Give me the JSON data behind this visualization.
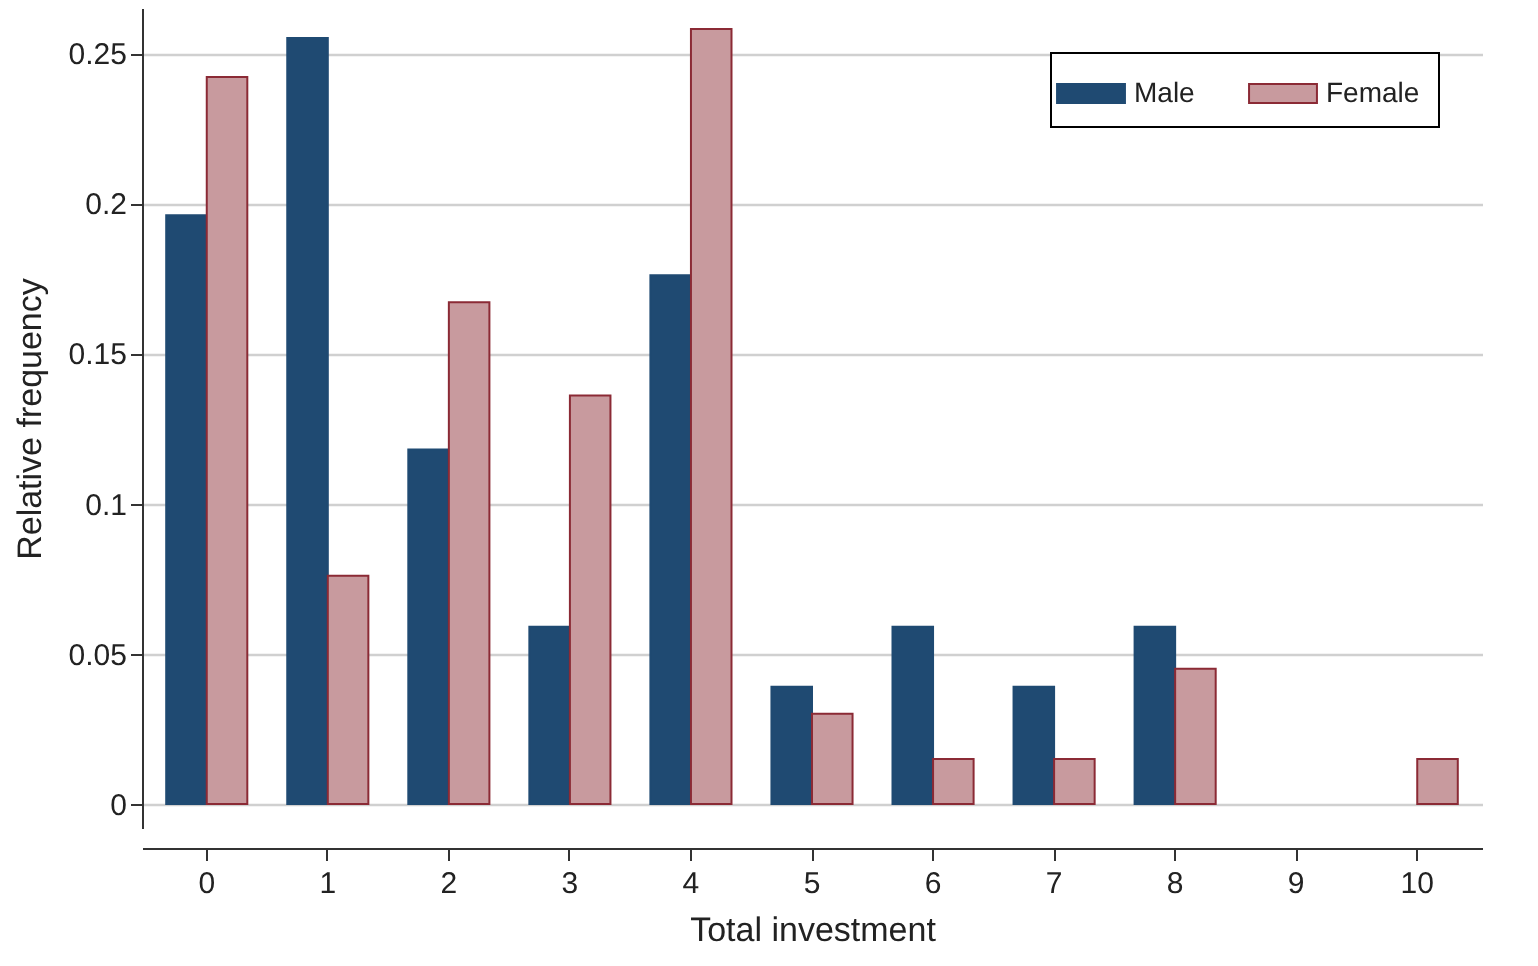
{
  "chart_data": {
    "type": "bar",
    "xlabel": "Total investment",
    "ylabel": "Relative frequency",
    "categories": [
      "0",
      "1",
      "2",
      "3",
      "4",
      "5",
      "6",
      "7",
      "8",
      "9",
      "10"
    ],
    "series": [
      {
        "name": "Male",
        "color": "#1f4a72",
        "values": [
          0.196,
          0.255,
          0.118,
          0.059,
          0.176,
          0.039,
          0.059,
          0.039,
          0.059,
          null,
          null
        ]
      },
      {
        "name": "Female",
        "color": "#c89a9e",
        "values": [
          0.242,
          0.076,
          0.167,
          0.136,
          0.258,
          0.03,
          0.015,
          0.015,
          0.045,
          null,
          0.015
        ]
      }
    ],
    "ylim": [
      -0.008,
      0.265
    ],
    "yticks": [
      0,
      0.05,
      0.1,
      0.15,
      0.2,
      0.25
    ],
    "grid": "y",
    "legend": "top right"
  }
}
